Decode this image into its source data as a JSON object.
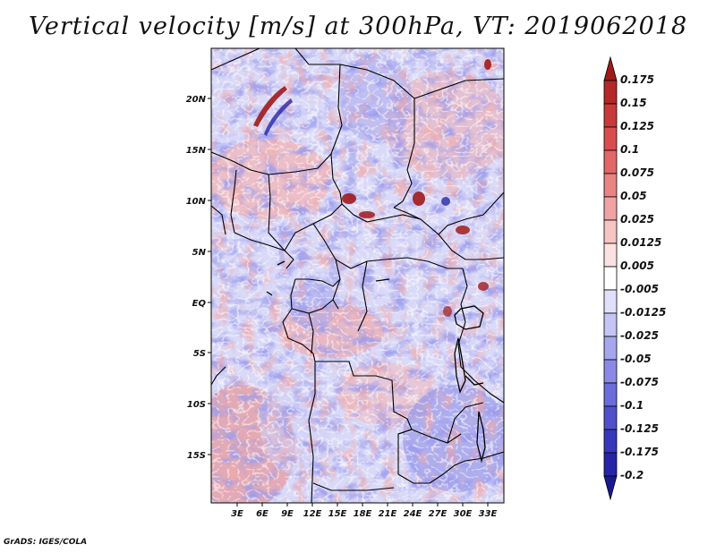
{
  "title": "Vertical velocity [m/s] at 300hPa, VT: 2019062018",
  "credit": "GrADS: IGES/COLA",
  "map": {
    "variable": "Vertical velocity",
    "units": "m/s",
    "level": "300hPa",
    "valid_time": "2019062018",
    "lat_labels": [
      "20N",
      "15N",
      "10N",
      "5N",
      "EQ",
      "5S",
      "10S",
      "15S"
    ],
    "lon_labels": [
      "3E",
      "6E",
      "9E",
      "12E",
      "15E",
      "18E",
      "21E",
      "24E",
      "27E",
      "30E",
      "33E"
    ]
  },
  "colorbar": {
    "levels": [
      "0.175",
      "0.15",
      "0.125",
      "0.1",
      "0.075",
      "0.05",
      "0.025",
      "0.0125",
      "0.005",
      "-0.005",
      "-0.0125",
      "-0.025",
      "-0.05",
      "-0.075",
      "-0.1",
      "-0.125",
      "-0.175",
      "-0.2"
    ],
    "colors": [
      "#a01a1a",
      "#b52828",
      "#c83a3a",
      "#d84e4e",
      "#e26767",
      "#ea8484",
      "#f1a3a3",
      "#f7c4c4",
      "#fbe2e2",
      "#ffffff",
      "#e0e0fb",
      "#c4c4f5",
      "#a6a6ee",
      "#8a8ae6",
      "#6c6cdc",
      "#5050cd",
      "#3838bb",
      "#2525a8",
      "#1a1a90"
    ]
  }
}
